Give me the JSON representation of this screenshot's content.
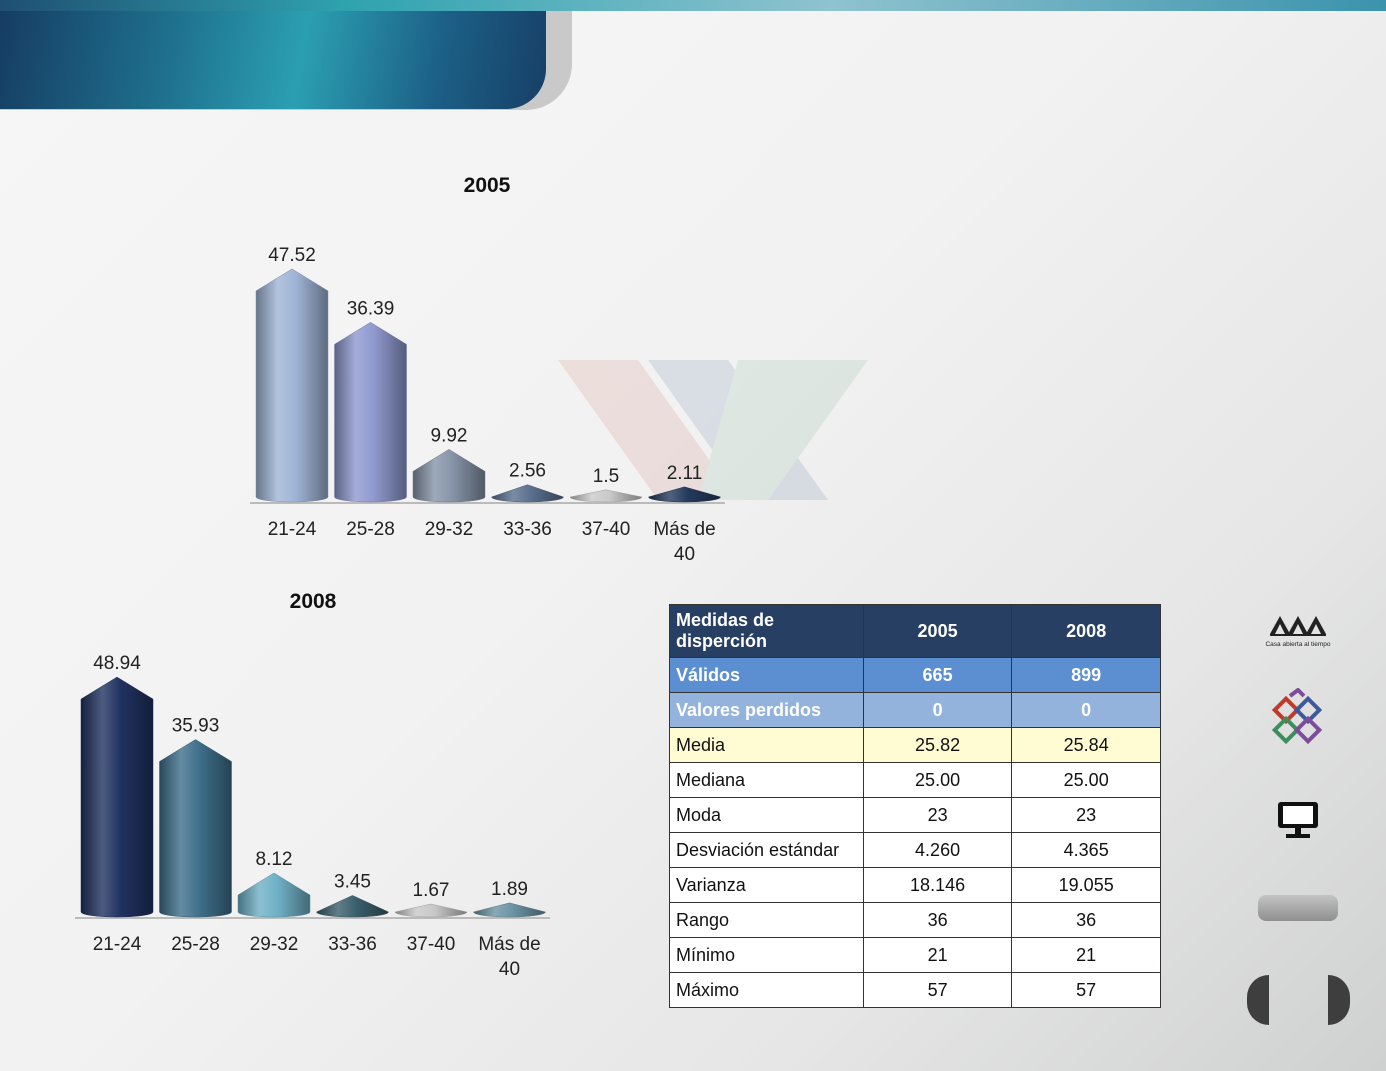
{
  "chart_data": [
    {
      "type": "bar",
      "title": "2005",
      "categories": [
        "21-24",
        "25-28",
        "29-32",
        "33-36",
        "37-40",
        "Más de 40"
      ],
      "category_lines": [
        [
          "21-24"
        ],
        [
          "25-28"
        ],
        [
          "29-32"
        ],
        [
          "33-36"
        ],
        [
          "37-40"
        ],
        [
          "Más de",
          "40"
        ]
      ],
      "values": [
        47.52,
        36.39,
        9.92,
        2.56,
        1.5,
        2.11
      ],
      "value_labels": [
        "47.52",
        "36.39",
        "9.92",
        "2.56",
        "1.5",
        "2.11"
      ],
      "colors": [
        "#9fb4d6",
        "#8f99cf",
        "#8694a8",
        "#5a708e",
        "#c9c9c9",
        "#243a5c"
      ],
      "ylim": [
        0,
        50
      ],
      "grid": false
    },
    {
      "type": "bar",
      "title": "2008",
      "categories": [
        "21-24",
        "25-28",
        "29-32",
        "33-36",
        "37-40",
        "Más de 40"
      ],
      "category_lines": [
        [
          "21-24"
        ],
        [
          "25-28"
        ],
        [
          "29-32"
        ],
        [
          "33-36"
        ],
        [
          "37-40"
        ],
        [
          "Más de",
          "40"
        ]
      ],
      "values": [
        48.94,
        35.93,
        8.12,
        3.45,
        1.67,
        1.89
      ],
      "value_labels": [
        "48.94",
        "35.93",
        "8.12",
        "3.45",
        "1.67",
        "1.89"
      ],
      "colors": [
        "#1f3260",
        "#3e6f8b",
        "#6fb0c6",
        "#3a5f6c",
        "#c8c8c8",
        "#6b93a3"
      ],
      "ylim": [
        0,
        50
      ],
      "grid": false
    }
  ],
  "table": {
    "header": [
      "Medidas de disperción",
      "2005",
      "2008"
    ],
    "rows": [
      [
        "Válidos",
        "665",
        "899"
      ],
      [
        "Valores perdidos",
        "0",
        "0"
      ],
      [
        "Media",
        "25.82",
        "25.84"
      ],
      [
        "Mediana",
        "25.00",
        "25.00"
      ],
      [
        "Moda",
        "23",
        "23"
      ],
      [
        "Desviación estándar",
        "4.260",
        "4.365"
      ],
      [
        "Varianza",
        "18.146",
        "19.055"
      ],
      [
        "Rango",
        "36",
        "36"
      ],
      [
        "Mínimo",
        "21",
        "21"
      ],
      [
        "Máximo",
        "57",
        "57"
      ]
    ]
  },
  "sidebar": {
    "logo_text": "Casa abierta al tiempo",
    "icons": [
      "uam-logo",
      "puzzle-icon",
      "monitor-icon"
    ]
  },
  "colors": {
    "banner": "#1e6e8c",
    "table_header": "#263f63",
    "valid_row": "#5b8fd2",
    "lost_row": "#93b3dd",
    "media_row": "#fffbd3"
  }
}
